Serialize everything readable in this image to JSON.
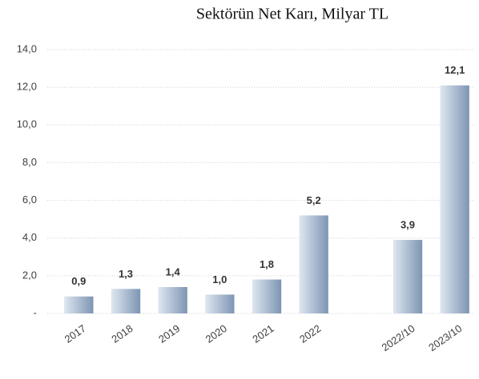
{
  "chart_data": {
    "type": "bar",
    "title": "Sektörün Net Karı, Milyar TL",
    "categories": [
      "2017",
      "2018",
      "2019",
      "2020",
      "2021",
      "2022",
      null,
      "2022/10",
      "2023/10"
    ],
    "values": [
      0.9,
      1.3,
      1.4,
      1.0,
      1.8,
      5.2,
      null,
      3.9,
      12.1
    ],
    "value_labels": [
      "0,9",
      "1,3",
      "1,4",
      "1,0",
      "1,8",
      "5,2",
      null,
      "3,9",
      "12,1"
    ],
    "color": "#7d95b3",
    "ylim": [
      0,
      14
    ],
    "yticks": [
      {
        "value": 0,
        "label": "-"
      },
      {
        "value": 2,
        "label": "2,0"
      },
      {
        "value": 4,
        "label": "4,0"
      },
      {
        "value": 6,
        "label": "6,0"
      },
      {
        "value": 8,
        "label": "8,0"
      },
      {
        "value": 10,
        "label": "10,0"
      },
      {
        "value": 12,
        "label": "12,0"
      },
      {
        "value": 14,
        "label": "14,0"
      }
    ],
    "grid": true
  }
}
